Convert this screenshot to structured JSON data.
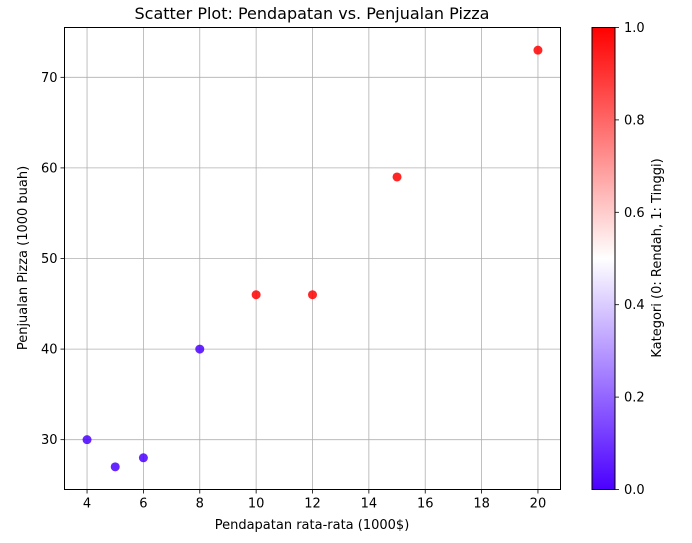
{
  "chart_data": {
    "type": "scatter",
    "title": "Scatter Plot: Pendapatan vs. Penjualan Pizza",
    "xlabel": "Pendapatan rata-rata (1000$)",
    "ylabel": "Penjualan Pizza (1000 buah)",
    "xlim": [
      3.2,
      20.8
    ],
    "ylim": [
      24.5,
      75.5
    ],
    "xticks": [
      4,
      6,
      8,
      10,
      12,
      14,
      16,
      18,
      20
    ],
    "yticks": [
      30,
      40,
      50,
      60,
      70
    ],
    "grid": true,
    "points": [
      {
        "x": 4,
        "y": 30,
        "category": 0
      },
      {
        "x": 5,
        "y": 27,
        "category": 0
      },
      {
        "x": 6,
        "y": 28,
        "category": 0
      },
      {
        "x": 8,
        "y": 40,
        "category": 0
      },
      {
        "x": 10,
        "y": 46,
        "category": 1
      },
      {
        "x": 12,
        "y": 46,
        "category": 1
      },
      {
        "x": 15,
        "y": 59,
        "category": 1
      },
      {
        "x": 20,
        "y": 73,
        "category": 1
      }
    ],
    "colorbar": {
      "label": "Kategori (0: Rendah, 1: Tinggi)",
      "range": [
        0.0,
        1.0
      ],
      "ticks": [
        "0.0",
        "0.2",
        "0.4",
        "0.6",
        "0.8",
        "1.0"
      ],
      "colors": {
        "low": "#4b00ff",
        "mid": "#ffffff",
        "high": "#ff0000"
      }
    }
  }
}
